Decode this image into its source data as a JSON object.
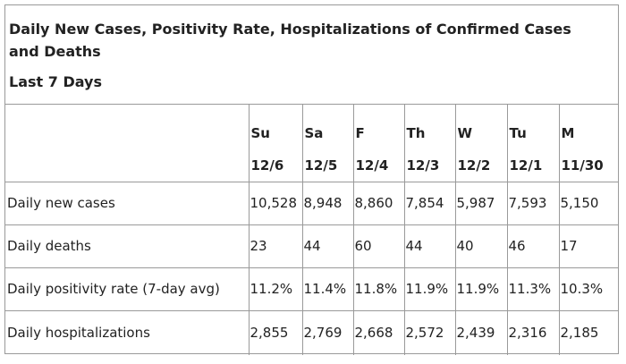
{
  "title": "Daily New Cases, Positivity Rate, Hospitalizations of Confirmed Cases and Deaths",
  "subtitle": "Last 7 Days",
  "columns": [
    {
      "day": "Su",
      "date": "12/6"
    },
    {
      "day": "Sa",
      "date": "12/5"
    },
    {
      "day": "F",
      "date": "12/4"
    },
    {
      "day": "Th",
      "date": "12/3"
    },
    {
      "day": "W",
      "date": "12/2"
    },
    {
      "day": "Tu",
      "date": "12/1"
    },
    {
      "day": "M",
      "date": "11/30"
    }
  ],
  "rows": [
    {
      "label": "Daily new cases",
      "values": [
        "10,528",
        "8,948",
        "8,860",
        "7,854",
        "5,987",
        "7,593",
        "5,150"
      ]
    },
    {
      "label": "Daily deaths",
      "values": [
        "23",
        "44",
        "60",
        "44",
        "40",
        "46",
        "17"
      ]
    },
    {
      "label": "Daily positivity rate (7-day avg)",
      "values": [
        "11.2%",
        "11.4%",
        "11.8%",
        "11.9%",
        "11.9%",
        "11.3%",
        "10.3%"
      ]
    },
    {
      "label": "Daily hospitalizations",
      "values": [
        "2,855",
        "2,769",
        "2,668",
        "2,572",
        "2,439",
        "2,316",
        "2,185"
      ]
    }
  ]
}
